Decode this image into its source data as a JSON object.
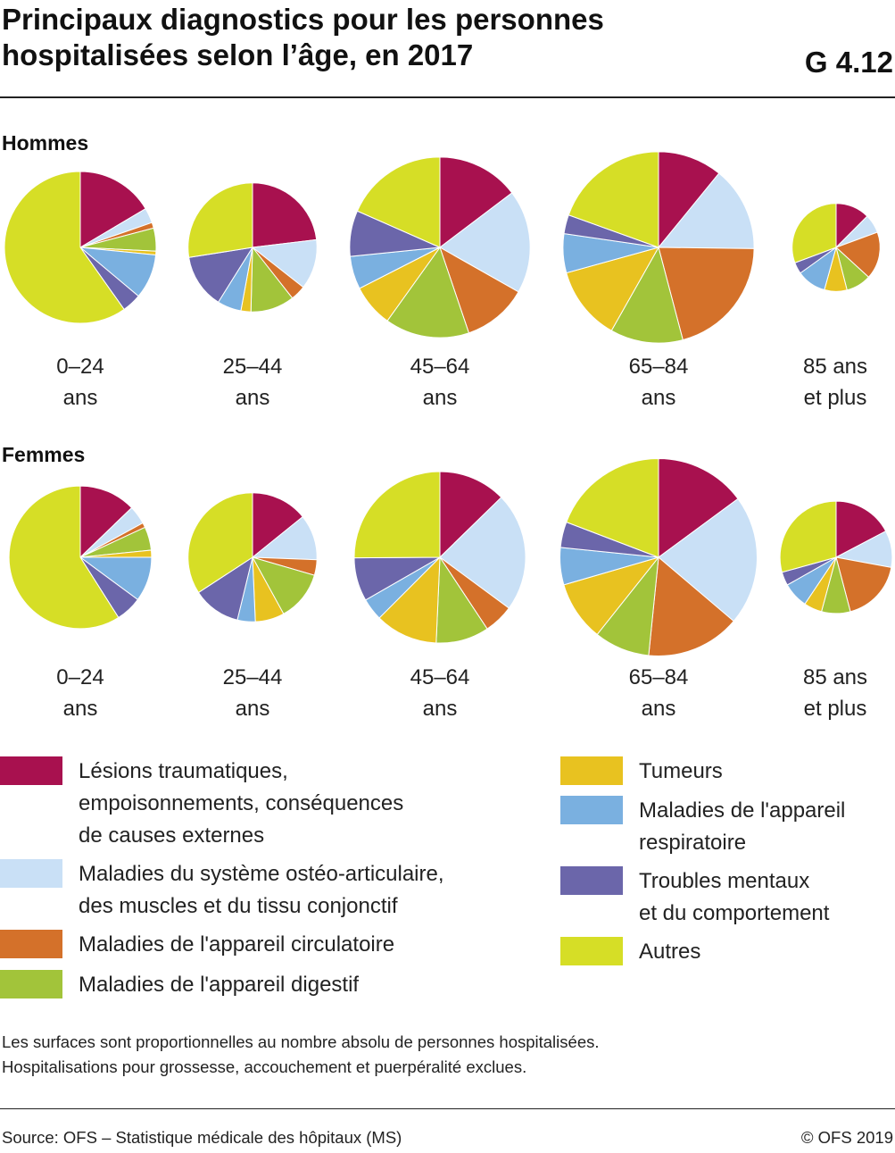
{
  "title": {
    "line1": "Principaux diagnostics pour les personnes",
    "line2": "hospitalisées selon l’âge, en 2017",
    "chart_id": "G 4.12"
  },
  "sections": {
    "men": "Hommes",
    "women": "Femmes"
  },
  "age_groups": [
    {
      "line1": "0–24",
      "line2": "ans"
    },
    {
      "line1": "25–44",
      "line2": "ans"
    },
    {
      "line1": "45–64",
      "line2": "ans"
    },
    {
      "line1": "65–84",
      "line2": "ans"
    },
    {
      "line1": "85 ans",
      "line2": "et plus"
    }
  ],
  "legend": [
    {
      "key": "injuries",
      "color": "#a8114f",
      "lines": [
        "Lésions traumatiques,",
        "empoisonnements, conséquences",
        "de causes externes"
      ]
    },
    {
      "key": "musculoskeletal",
      "color": "#c9e0f6",
      "lines": [
        "Maladies du système ostéo-articulaire,",
        "des muscles et du tissu conjonctif"
      ]
    },
    {
      "key": "circulatory",
      "color": "#d4712a",
      "lines": [
        "Maladies de l'appareil circulatoire"
      ]
    },
    {
      "key": "digestive",
      "color": "#a2c43a",
      "lines": [
        "Maladies de l'appareil digestif"
      ]
    },
    {
      "key": "tumours",
      "color": "#e8c220",
      "lines": [
        "Tumeurs"
      ]
    },
    {
      "key": "respiratory",
      "color": "#7ab0e0",
      "lines": [
        "Maladies de l'appareil",
        "respiratoire"
      ]
    },
    {
      "key": "mental",
      "color": "#6b66aa",
      "lines": [
        "Troubles mentaux",
        "et du comportement"
      ]
    },
    {
      "key": "other",
      "color": "#d6de26",
      "lines": [
        "Autres"
      ]
    }
  ],
  "notes": {
    "line1": "Les surfaces sont proportionnelles au nombre absolu de personnes hospitalisées.",
    "line2": "Hospitalisations pour grossesse, accouchement et puerpéralité exclues."
  },
  "source": "Source: OFS – Statistique médicale des hôpitaux (MS)",
  "copyright": "© OFS 2019",
  "chart_data": {
    "type": "pie",
    "category_order": [
      "injuries",
      "musculoskeletal",
      "circulatory",
      "digestive",
      "tumours",
      "respiratory",
      "mental",
      "other"
    ],
    "unit": "share of hospitalised persons (%), area proportional to absolute number",
    "pies": [
      {
        "group": "Hommes",
        "age": "0–24 ans",
        "relative_size": 1.0,
        "values": [
          16.5,
          3.2,
          1.2,
          4.9,
          0.8,
          9.5,
          4.1,
          59.8
        ]
      },
      {
        "group": "Hommes",
        "age": "25–44 ans",
        "relative_size": 0.85,
        "values": [
          23.1,
          12.5,
          3.8,
          11.0,
          2.5,
          6.0,
          13.6,
          27.5
        ]
      },
      {
        "group": "Hommes",
        "age": "45–64 ans",
        "relative_size": 1.19,
        "values": [
          14.7,
          18.5,
          11.6,
          15.1,
          7.6,
          5.9,
          8.2,
          18.4
        ]
      },
      {
        "group": "Hommes",
        "age": "65–84 ans",
        "relative_size": 1.26,
        "values": [
          10.9,
          14.3,
          20.7,
          12.3,
          12.5,
          6.6,
          3.2,
          19.5
        ]
      },
      {
        "group": "Hommes",
        "age": "85 ans et plus",
        "relative_size": 0.58,
        "values": [
          12.5,
          6.9,
          17.4,
          9.2,
          8.3,
          10.8,
          4.2,
          30.7
        ]
      },
      {
        "group": "Femmes",
        "age": "0–24 ans",
        "relative_size": 0.94,
        "values": [
          12.8,
          4.2,
          1.1,
          5.3,
          1.6,
          10.1,
          5.9,
          59.0
        ]
      },
      {
        "group": "Femmes",
        "age": "25–44 ans",
        "relative_size": 0.85,
        "values": [
          14.2,
          11.4,
          3.9,
          12.5,
          7.3,
          4.5,
          12.0,
          34.2
        ]
      },
      {
        "group": "Femmes",
        "age": "45–64 ans",
        "relative_size": 1.13,
        "values": [
          12.7,
          22.4,
          5.6,
          10.0,
          11.8,
          4.2,
          8.2,
          25.1
        ]
      },
      {
        "group": "Femmes",
        "age": "65–84 ans",
        "relative_size": 1.3,
        "values": [
          14.9,
          21.3,
          15.4,
          9.1,
          9.8,
          6.1,
          4.2,
          19.2
        ]
      },
      {
        "group": "Femmes",
        "age": "85 ans et plus",
        "relative_size": 0.74,
        "values": [
          17.3,
          10.6,
          18.0,
          8.3,
          5.2,
          7.4,
          3.9,
          29.3
        ]
      }
    ]
  }
}
